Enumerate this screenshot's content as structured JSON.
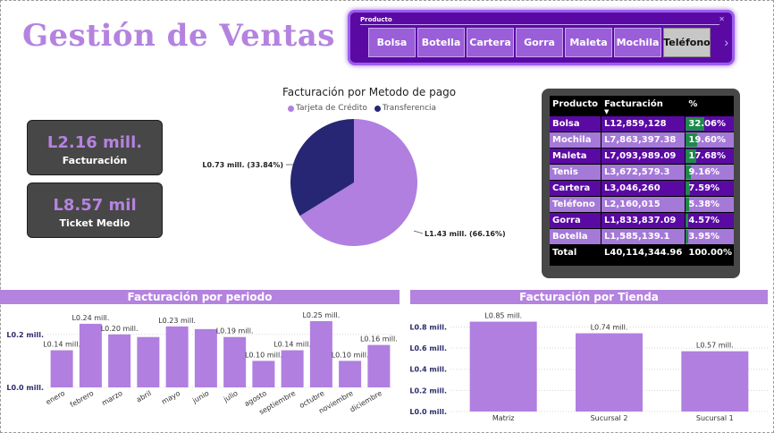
{
  "title": "Gestión de Ventas",
  "slicer": {
    "label": "Producto",
    "items": [
      "Bolsa",
      "Botella",
      "Cartera",
      "Gorra",
      "Maleta",
      "Mochila",
      "Teléfono"
    ],
    "selected": "Teléfono"
  },
  "kpis": [
    {
      "value": "L2.16 mill.",
      "label": "Facturación"
    },
    {
      "value": "L8.57 mil",
      "label": "Ticket Medio"
    }
  ],
  "pie": {
    "title": "Facturación por Metodo de pago",
    "legend": [
      "Tarjeta de Crédito",
      "Transferencia"
    ],
    "colors": [
      "#b07fe0",
      "#262674"
    ],
    "labels": [
      "L1.43 mill. (66.16%)",
      "L0.73 mill. (33.84%)"
    ]
  },
  "table": {
    "headers": [
      "Producto",
      "Facturación",
      "%"
    ],
    "rows": [
      {
        "producto": "Bolsa",
        "facturacion": "L12,859,128",
        "pct": "32.06%"
      },
      {
        "producto": "Mochila",
        "facturacion": "L7,863,397.38",
        "pct": "19.60%"
      },
      {
        "producto": "Maleta",
        "facturacion": "L7,093,989.09",
        "pct": "17.68%"
      },
      {
        "producto": "Tenis",
        "facturacion": "L3,672,579.3",
        "pct": "9.16%"
      },
      {
        "producto": "Cartera",
        "facturacion": "L3,046,260",
        "pct": "7.59%"
      },
      {
        "producto": "Teléfono",
        "facturacion": "L2,160,015",
        "pct": "5.38%"
      },
      {
        "producto": "Gorra",
        "facturacion": "L1,833,837.09",
        "pct": "4.57%"
      },
      {
        "producto": "Botella",
        "facturacion": "L1,585,139.1",
        "pct": "3.95%"
      }
    ],
    "total": {
      "producto": "Total",
      "facturacion": "L40,114,344.96",
      "pct": "100.00%"
    }
  },
  "section_titles": {
    "periodo": "Facturación por periodo",
    "tienda": "Facturación por Tienda"
  },
  "chart_data": [
    {
      "type": "pie",
      "title": "Facturación por Metodo de pago",
      "categories": [
        "Tarjeta de Crédito",
        "Transferencia"
      ],
      "values": [
        1.43,
        0.73
      ],
      "percentages": [
        66.16,
        33.84
      ]
    },
    {
      "type": "bar",
      "title": "Facturación por periodo",
      "categories": [
        "enero",
        "febrero",
        "marzo",
        "abril",
        "mayo",
        "junio",
        "julio",
        "agosto",
        "septiembre",
        "octubre",
        "noviembre",
        "diciembre"
      ],
      "values": [
        0.14,
        0.24,
        0.2,
        0.19,
        0.23,
        0.22,
        0.19,
        0.1,
        0.14,
        0.25,
        0.1,
        0.16
      ],
      "data_labels": [
        "L0.14 mill.",
        "L0.24 mill.",
        "L0.20 mill.",
        "",
        "L0.23 mill.",
        "",
        "L0.19 mill.",
        "L0.10 mill.",
        "L0.14 mill.",
        "L0.25 mill.",
        "L0.10 mill.",
        "L0.16 mill."
      ],
      "yticks": [
        "L0.0 mill.",
        "L0.2 mill."
      ],
      "ylim": [
        0,
        0.26
      ],
      "color": "#b07fe0"
    },
    {
      "type": "bar",
      "title": "Facturación por Tienda",
      "categories": [
        "Matriz",
        "Sucursal 2",
        "Sucursal 1"
      ],
      "values": [
        0.85,
        0.74,
        0.57
      ],
      "data_labels": [
        "L0.85 mill.",
        "L0.74 mill.",
        "L0.57 mill."
      ],
      "yticks": [
        "L0.0 mill.",
        "L0.2 mill.",
        "L0.4 mill.",
        "L0.6 mill.",
        "L0.8 mill."
      ],
      "ylim": [
        0,
        0.88
      ],
      "color": "#b07fe0"
    }
  ]
}
